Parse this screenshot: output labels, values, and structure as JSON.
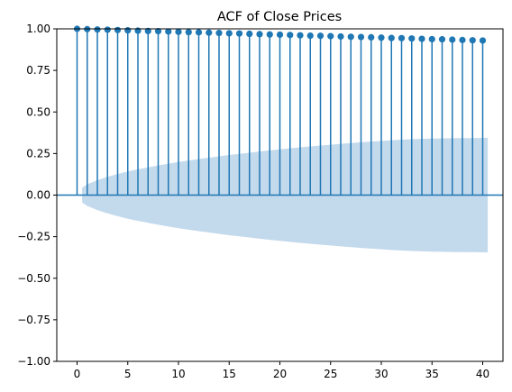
{
  "chart_data": {
    "type": "bar",
    "title": "ACF of Close Prices",
    "xlabel": "",
    "ylabel": "",
    "xlim": [
      -2,
      42
    ],
    "ylim": [
      -1.0,
      1.0
    ],
    "xticks": [
      0,
      5,
      10,
      15,
      20,
      25,
      30,
      35,
      40
    ],
    "xtick_labels": [
      "0",
      "5",
      "10",
      "15",
      "20",
      "25",
      "30",
      "35",
      "40"
    ],
    "yticks": [
      -1.0,
      -0.75,
      -0.5,
      -0.25,
      0.0,
      0.25,
      0.5,
      0.75,
      1.0
    ],
    "ytick_labels": [
      "−1.00",
      "−0.75",
      "−0.50",
      "−0.25",
      "0.00",
      "0.25",
      "0.50",
      "0.75",
      "1.00"
    ],
    "grid": false,
    "lags": [
      0,
      1,
      2,
      3,
      4,
      5,
      6,
      7,
      8,
      9,
      10,
      11,
      12,
      13,
      14,
      15,
      16,
      17,
      18,
      19,
      20,
      21,
      22,
      23,
      24,
      25,
      26,
      27,
      28,
      29,
      30,
      31,
      32,
      33,
      34,
      35,
      36,
      37,
      38,
      39,
      40
    ],
    "values": [
      1.0,
      0.998,
      0.996,
      0.995,
      0.993,
      0.991,
      0.989,
      0.987,
      0.986,
      0.984,
      0.982,
      0.98,
      0.979,
      0.977,
      0.975,
      0.973,
      0.972,
      0.97,
      0.968,
      0.966,
      0.965,
      0.963,
      0.961,
      0.959,
      0.958,
      0.956,
      0.954,
      0.952,
      0.951,
      0.949,
      0.947,
      0.945,
      0.944,
      0.942,
      0.94,
      0.938,
      0.937,
      0.935,
      0.933,
      0.931,
      0.93
    ],
    "confint_x": [
      0.5,
      1,
      2,
      3,
      4,
      5,
      6,
      7,
      8,
      9,
      10,
      11,
      12,
      13,
      14,
      15,
      16,
      17,
      18,
      19,
      20,
      21,
      22,
      23,
      24,
      25,
      26,
      27,
      28,
      29,
      30,
      31,
      32,
      33,
      34,
      35,
      36,
      37,
      38,
      39,
      40,
      40.5
    ],
    "confint_upper": [
      0.045,
      0.065,
      0.09,
      0.11,
      0.127,
      0.142,
      0.155,
      0.167,
      0.178,
      0.189,
      0.199,
      0.208,
      0.217,
      0.225,
      0.233,
      0.241,
      0.248,
      0.255,
      0.262,
      0.269,
      0.275,
      0.281,
      0.287,
      0.293,
      0.298,
      0.303,
      0.308,
      0.313,
      0.318,
      0.322,
      0.326,
      0.33,
      0.333,
      0.336,
      0.338,
      0.34,
      0.341,
      0.342,
      0.343,
      0.343,
      0.344,
      0.345
    ],
    "colors": {
      "stem": "#1f77b4",
      "confint_fill": "#c3d9ec",
      "axis": "#000000"
    }
  }
}
